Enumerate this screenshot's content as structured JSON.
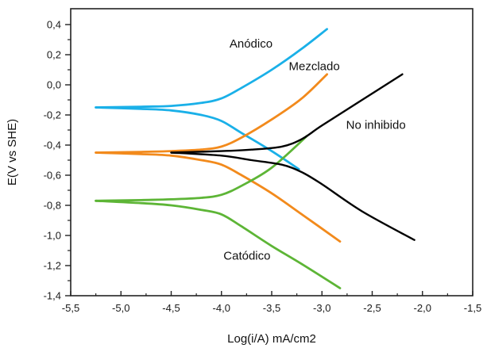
{
  "chart_data": {
    "type": "line",
    "title": "",
    "xlabel": "Log(i/A) mA/cm2",
    "ylabel": "E(V vs SHE)",
    "xlim": [
      -5.5,
      -1.5
    ],
    "ylim": [
      -1.4,
      0.4
    ],
    "x_ticks": [
      -5.5,
      -5.0,
      -4.5,
      -4.0,
      -3.5,
      -3.0,
      -2.5,
      -2.0,
      -1.5
    ],
    "x_tick_labels": [
      "-5,5",
      "-5,0",
      "-4,5",
      "-4,0",
      "-3,5",
      "-3,0",
      "-2,5",
      "-2,0",
      "-1,5"
    ],
    "y_ticks": [
      0.4,
      0.2,
      0.0,
      -0.2,
      -0.4,
      -0.6,
      -0.8,
      -1.0,
      -1.2,
      -1.4
    ],
    "y_tick_labels": [
      "0,4",
      "0,2",
      "0,0",
      "-0,2",
      "-0,4",
      "-0,6",
      "-0,8",
      "-1,0",
      "-1,2",
      "-1,4"
    ],
    "grid": false,
    "legend": "none (inline annotations)",
    "series": [
      {
        "name": "Anódico",
        "color": "#1ab0e8",
        "branches": [
          {
            "branch": "anodic",
            "points": [
              [
                -5.25,
                -0.15
              ],
              [
                -4.8,
                -0.145
              ],
              [
                -4.5,
                -0.14
              ],
              [
                -4.2,
                -0.12
              ],
              [
                -4.0,
                -0.09
              ],
              [
                -3.8,
                -0.02
              ],
              [
                -3.5,
                0.1
              ],
              [
                -3.2,
                0.24
              ],
              [
                -2.95,
                0.37
              ]
            ]
          },
          {
            "branch": "cathodic",
            "points": [
              [
                -5.25,
                -0.15
              ],
              [
                -4.8,
                -0.16
              ],
              [
                -4.5,
                -0.17
              ],
              [
                -4.2,
                -0.2
              ],
              [
                -4.0,
                -0.24
              ],
              [
                -3.8,
                -0.32
              ],
              [
                -3.5,
                -0.44
              ],
              [
                -3.23,
                -0.56
              ]
            ]
          }
        ]
      },
      {
        "name": "Mezclado",
        "color": "#f28a1c",
        "branches": [
          {
            "branch": "anodic",
            "points": [
              [
                -5.25,
                -0.45
              ],
              [
                -4.8,
                -0.445
              ],
              [
                -4.5,
                -0.44
              ],
              [
                -4.2,
                -0.43
              ],
              [
                -4.0,
                -0.41
              ],
              [
                -3.8,
                -0.35
              ],
              [
                -3.5,
                -0.23
              ],
              [
                -3.2,
                -0.09
              ],
              [
                -2.95,
                0.07
              ]
            ]
          },
          {
            "branch": "cathodic",
            "points": [
              [
                -5.25,
                -0.45
              ],
              [
                -4.8,
                -0.46
              ],
              [
                -4.5,
                -0.47
              ],
              [
                -4.2,
                -0.5
              ],
              [
                -4.0,
                -0.53
              ],
              [
                -3.8,
                -0.6
              ],
              [
                -3.5,
                -0.72
              ],
              [
                -3.2,
                -0.86
              ],
              [
                -2.82,
                -1.04
              ]
            ]
          }
        ]
      },
      {
        "name": "Catódico",
        "color": "#5db536",
        "branches": [
          {
            "branch": "anodic",
            "points": [
              [
                -5.25,
                -0.77
              ],
              [
                -4.8,
                -0.765
              ],
              [
                -4.5,
                -0.76
              ],
              [
                -4.2,
                -0.75
              ],
              [
                -4.0,
                -0.73
              ],
              [
                -3.8,
                -0.67
              ],
              [
                -3.5,
                -0.55
              ],
              [
                -3.15,
                -0.34
              ]
            ]
          },
          {
            "branch": "cathodic",
            "points": [
              [
                -5.25,
                -0.77
              ],
              [
                -4.8,
                -0.785
              ],
              [
                -4.5,
                -0.8
              ],
              [
                -4.2,
                -0.83
              ],
              [
                -4.0,
                -0.86
              ],
              [
                -3.8,
                -0.94
              ],
              [
                -3.5,
                -1.07
              ],
              [
                -3.2,
                -1.19
              ],
              [
                -2.82,
                -1.35
              ]
            ]
          }
        ]
      },
      {
        "name": "No inhibido",
        "color": "#000000",
        "branches": [
          {
            "branch": "anodic",
            "points": [
              [
                -4.5,
                -0.45
              ],
              [
                -4.0,
                -0.44
              ],
              [
                -3.7,
                -0.43
              ],
              [
                -3.4,
                -0.41
              ],
              [
                -3.2,
                -0.36
              ],
              [
                -3.0,
                -0.27
              ],
              [
                -2.6,
                -0.1
              ],
              [
                -2.2,
                0.07
              ]
            ]
          },
          {
            "branch": "cathodic",
            "points": [
              [
                -4.5,
                -0.45
              ],
              [
                -4.0,
                -0.47
              ],
              [
                -3.7,
                -0.5
              ],
              [
                -3.4,
                -0.53
              ],
              [
                -3.2,
                -0.58
              ],
              [
                -3.0,
                -0.66
              ],
              [
                -2.6,
                -0.84
              ],
              [
                -2.08,
                -1.03
              ]
            ]
          }
        ]
      }
    ],
    "annotations": [
      {
        "text": "Anódico",
        "x": -3.92,
        "y": 0.275
      },
      {
        "text": "Mezclado",
        "x": -3.33,
        "y": 0.125
      },
      {
        "text": "No inhibido",
        "x": -2.76,
        "y": -0.265
      },
      {
        "text": "Catódico",
        "x": -3.98,
        "y": -1.135
      }
    ]
  }
}
